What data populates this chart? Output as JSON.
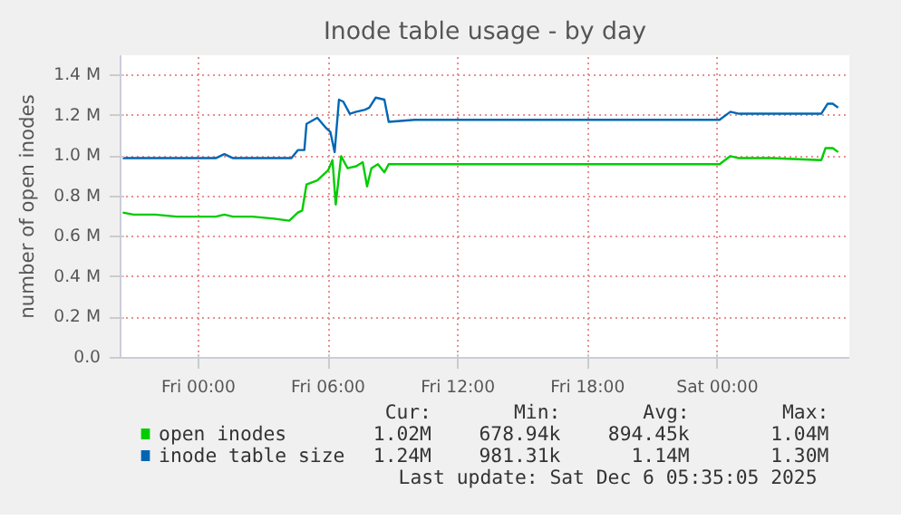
{
  "chart_data": {
    "type": "line",
    "title": "Inode table usage - by day",
    "ylabel": "number of open inodes",
    "xlim": [
      "2025-12-04T20:24",
      "2025-12-06T06:06"
    ],
    "ylim": [
      0,
      1.5
    ],
    "xticks": [
      {
        "value": "2025-12-05T00:00",
        "label": "Fri 00:00"
      },
      {
        "value": "2025-12-05T06:00",
        "label": "Fri 06:00"
      },
      {
        "value": "2025-12-05T12:00",
        "label": "Fri 12:00"
      },
      {
        "value": "2025-12-05T18:00",
        "label": "Fri 18:00"
      },
      {
        "value": "2025-12-06T00:00",
        "label": "Sat 00:00"
      }
    ],
    "yticks": [
      {
        "value": 0,
        "label": "0.0"
      },
      {
        "value": 0.2,
        "label": "0.2 M"
      },
      {
        "value": 0.4,
        "label": "0.4 M"
      },
      {
        "value": 0.6,
        "label": "0.6 M"
      },
      {
        "value": 0.8,
        "label": "0.8 M"
      },
      {
        "value": 1.0,
        "label": "1.0 M"
      },
      {
        "value": 1.2,
        "label": "1.2 M"
      },
      {
        "value": 1.4,
        "label": "1.4 M"
      }
    ],
    "grid": true,
    "legend": "bottom",
    "marker": "none",
    "line_style": "solid",
    "series": [
      {
        "name": "open inodes",
        "color": "#00cc00",
        "x": [
          "2025-12-04T20:30",
          "2025-12-04T21:00",
          "2025-12-04T22:00",
          "2025-12-04T23:00",
          "2025-12-05T00:00",
          "2025-12-05T00:48",
          "2025-12-05T01:12",
          "2025-12-05T01:36",
          "2025-12-05T02:30",
          "2025-12-05T03:30",
          "2025-12-05T04:12",
          "2025-12-05T04:36",
          "2025-12-05T04:48",
          "2025-12-05T05:00",
          "2025-12-05T05:30",
          "2025-12-05T06:00",
          "2025-12-05T06:12",
          "2025-12-05T06:21",
          "2025-12-05T06:36",
          "2025-12-05T06:54",
          "2025-12-05T07:18",
          "2025-12-05T07:36",
          "2025-12-05T07:48",
          "2025-12-05T08:00",
          "2025-12-05T08:18",
          "2025-12-05T08:36",
          "2025-12-05T08:48",
          "2025-12-05T10:00",
          "2025-12-05T14:00",
          "2025-12-05T18:00",
          "2025-12-05T22:00",
          "2025-12-06T00:06",
          "2025-12-06T00:36",
          "2025-12-06T01:00",
          "2025-12-06T02:30",
          "2025-12-06T04:48",
          "2025-12-06T05:00",
          "2025-12-06T05:20",
          "2025-12-06T05:35"
        ],
        "values": [
          0.72,
          0.71,
          0.71,
          0.7,
          0.7,
          0.7,
          0.71,
          0.7,
          0.7,
          0.69,
          0.68,
          0.72,
          0.73,
          0.86,
          0.88,
          0.93,
          0.98,
          0.76,
          1.0,
          0.94,
          0.95,
          0.97,
          0.85,
          0.94,
          0.96,
          0.92,
          0.96,
          0.96,
          0.96,
          0.96,
          0.96,
          0.96,
          1.0,
          0.99,
          0.99,
          0.98,
          1.04,
          1.04,
          1.02
        ]
      },
      {
        "name": "inode table size",
        "color": "#0066b3",
        "x": [
          "2025-12-04T20:30",
          "2025-12-04T22:00",
          "2025-12-04T23:00",
          "2025-12-05T00:00",
          "2025-12-05T00:48",
          "2025-12-05T01:12",
          "2025-12-05T01:36",
          "2025-12-05T02:30",
          "2025-12-05T03:30",
          "2025-12-05T04:18",
          "2025-12-05T04:36",
          "2025-12-05T04:54",
          "2025-12-05T05:00",
          "2025-12-05T05:30",
          "2025-12-05T05:54",
          "2025-12-05T06:06",
          "2025-12-05T06:18",
          "2025-12-05T06:30",
          "2025-12-05T06:42",
          "2025-12-05T07:00",
          "2025-12-05T07:18",
          "2025-12-05T07:42",
          "2025-12-05T07:54",
          "2025-12-05T08:12",
          "2025-12-05T08:36",
          "2025-12-05T08:48",
          "2025-12-05T10:00",
          "2025-12-05T14:00",
          "2025-12-05T18:00",
          "2025-12-05T22:00",
          "2025-12-06T00:06",
          "2025-12-06T00:36",
          "2025-12-06T01:00",
          "2025-12-06T02:30",
          "2025-12-06T04:48",
          "2025-12-06T05:06",
          "2025-12-06T05:20",
          "2025-12-06T05:35"
        ],
        "values": [
          0.99,
          0.99,
          0.99,
          0.99,
          0.99,
          1.01,
          0.99,
          0.99,
          0.99,
          0.99,
          1.03,
          1.03,
          1.16,
          1.19,
          1.14,
          1.12,
          1.02,
          1.28,
          1.27,
          1.21,
          1.22,
          1.23,
          1.24,
          1.29,
          1.28,
          1.17,
          1.18,
          1.18,
          1.18,
          1.18,
          1.18,
          1.22,
          1.21,
          1.21,
          1.21,
          1.26,
          1.26,
          1.24
        ]
      }
    ],
    "annotations": [
      "Cur:",
      "Min:",
      "Avg:",
      "Max:",
      "1.02M",
      "678.94k",
      "894.45k",
      "1.04M",
      "1.24M",
      "981.31k",
      "1.14M",
      "1.30M",
      "Last update: Sat Dec  6 05:35:05 2025"
    ]
  }
}
